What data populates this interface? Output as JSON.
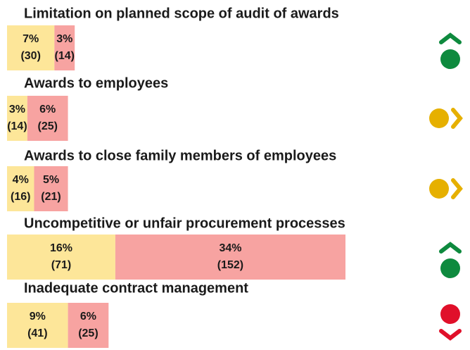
{
  "chart_data": {
    "type": "bar",
    "orientation": "horizontal",
    "stacked": true,
    "categories": [
      "Limitation on planned scope of audit of awards",
      "Awards to employees",
      "Awards to close family members of employees",
      "Uncompetitive or unfair procurement processes",
      "Inadequate contract management"
    ],
    "series": [
      {
        "color": "#fde699",
        "values": [
          7,
          3,
          4,
          16,
          9
        ],
        "value_labels": [
          "7%",
          "3%",
          "4%",
          "16%",
          "9%"
        ],
        "counts": [
          30,
          14,
          16,
          71,
          41
        ],
        "count_labels": [
          "(30)",
          "(14)",
          "(16)",
          "(71)",
          "(41)"
        ]
      },
      {
        "color": "#f7a3a1",
        "values": [
          3,
          6,
          5,
          34,
          6
        ],
        "value_labels": [
          "3%",
          "6%",
          "5%",
          "34%",
          "6%"
        ],
        "counts": [
          14,
          25,
          21,
          152,
          25
        ],
        "count_labels": [
          "(14)",
          "(25)",
          "(21)",
          "(152)",
          "(25)"
        ]
      }
    ],
    "trends": [
      "up",
      "flat",
      "flat",
      "up",
      "down"
    ],
    "trend_colors": {
      "up": "#0e8a3e",
      "flat": "#e6b000",
      "down": "#e0102a"
    }
  }
}
